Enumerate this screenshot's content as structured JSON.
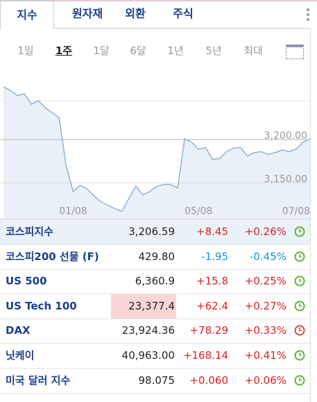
{
  "tabs": {
    "items": [
      "지수",
      "원자재",
      "외환",
      "주식"
    ],
    "active": 0
  },
  "periods": {
    "items": [
      "1일",
      "1주",
      "1달",
      "6달",
      "1년",
      "5년",
      "최대"
    ],
    "active": 1
  },
  "chart": {
    "type": "line",
    "color": "#8fb0d8",
    "fill": "#e9f0f8",
    "categories": [
      null,
      null,
      null,
      null,
      null,
      null,
      null,
      null,
      null,
      null,
      "01/08",
      null,
      null,
      null,
      null,
      null,
      null,
      null,
      null,
      null,
      null,
      null,
      null,
      null,
      null,
      null,
      null,
      null,
      "05/08",
      null,
      null,
      null,
      null,
      null,
      null,
      null,
      null,
      null,
      null,
      null,
      null,
      null,
      "07/08",
      null,
      null
    ],
    "values": [
      3261,
      3257,
      3251,
      3253,
      3241,
      3245,
      3237,
      3231,
      3225,
      3169,
      3140,
      3147,
      3143,
      3135,
      3128,
      3124,
      3120,
      3117,
      3132,
      3146,
      3136,
      3140,
      3146,
      3148,
      3148,
      3144,
      3201,
      3197,
      3189,
      3191,
      3177,
      3178,
      3186,
      3190,
      3191,
      3181,
      3185,
      3186,
      3183,
      3185,
      3188,
      3186,
      3189,
      3197,
      3201
    ],
    "ylim": [
      3108,
      3269
    ],
    "yticks": [
      {
        "value": 3150,
        "label": "3,150.00"
      },
      {
        "value": 3200,
        "label": "3,200.00"
      }
    ],
    "grid": true
  },
  "table": {
    "rows": [
      {
        "name": "코스피지수",
        "price": "3,206.59",
        "change": "+8.45",
        "pct": "+0.26%",
        "icon_color": "#5cb82e",
        "highlight": true
      },
      {
        "name": "코스피200 선물 (F)",
        "price": "429.80",
        "change": "-1.95",
        "pct": "-0.45%",
        "icon_color": "#5cb82e"
      },
      {
        "name": "US 500",
        "price": "6,360.9",
        "change": "+15.8",
        "pct": "+0.25%",
        "icon_color": "#5cb82e"
      },
      {
        "name": "US Tech 100",
        "price": "23,377.4",
        "change": "+62.4",
        "pct": "+0.27%",
        "icon_color": "#5cb82e",
        "price_flash": true
      },
      {
        "name": "DAX",
        "price": "23,924.36",
        "change": "+78.29",
        "pct": "+0.33%",
        "icon_color": "#e0453a"
      },
      {
        "name": "닛케이",
        "price": "40,963.00",
        "change": "+168.14",
        "pct": "+0.41%",
        "icon_color": "#5cb82e"
      },
      {
        "name": "미국 달러 지수",
        "price": "98.075",
        "change": "+0.060",
        "pct": "+0.06%",
        "icon_color": "#5cb82e"
      }
    ]
  }
}
